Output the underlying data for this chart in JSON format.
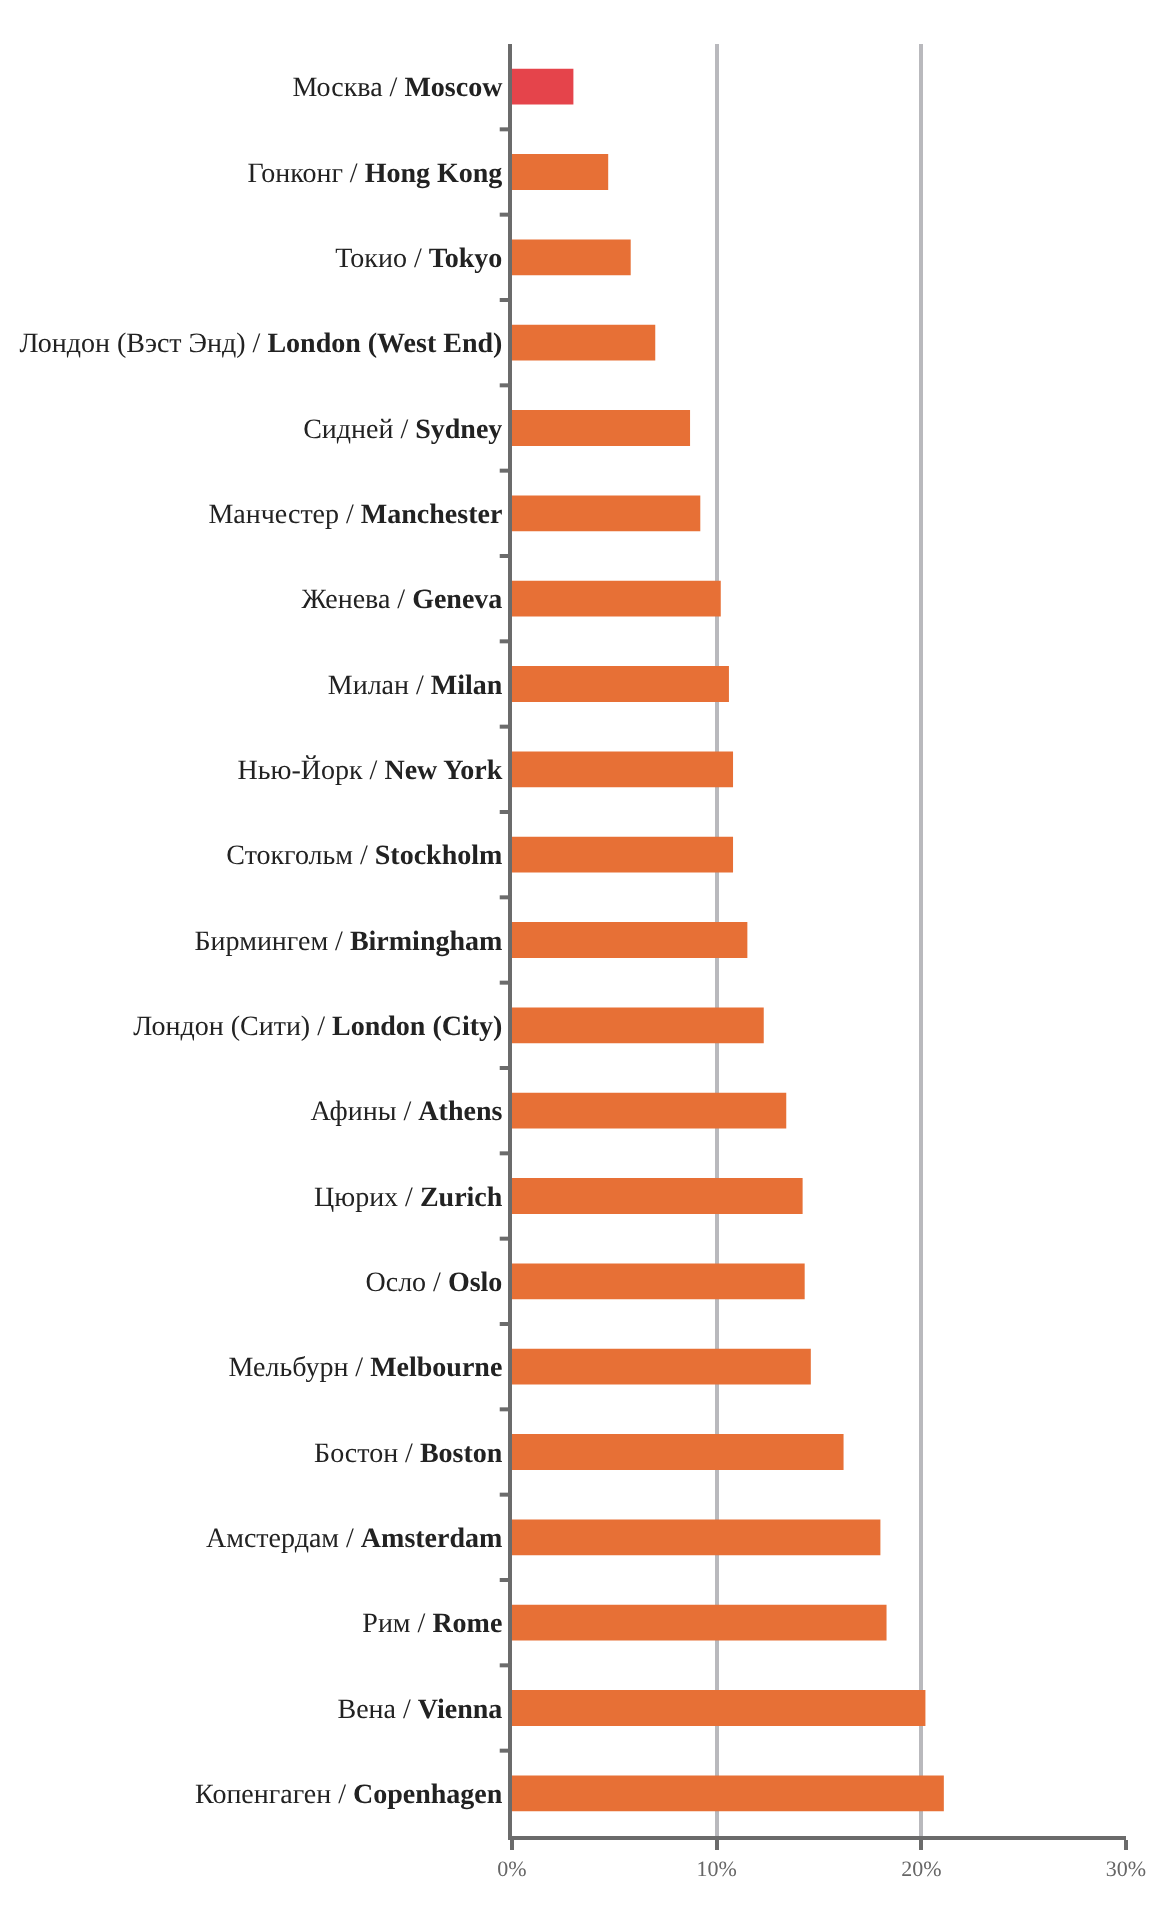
{
  "chart_data": {
    "type": "bar",
    "orientation": "horizontal",
    "categories": [
      "Москва / Moscow",
      "Гонконг / Hong Kong",
      "Токио / Tokyo",
      "Лондон (Вэст Энд) / London (West End)",
      "Сидней / Sydney",
      "Манчестер / Manchester",
      "Женева / Geneva",
      "Милан / Milan",
      "Нью-Йорк / New York",
      "Стокгольм / Stockholm",
      "Бирмингем / Birmingham",
      "Лондон (Сити) / London (City)",
      "Афины / Athens",
      "Цюрих / Zurich",
      "Осло / Oslo",
      "Мельбурн / Melbourne",
      "Бостон / Boston",
      "Амстердам / Amsterdam",
      "Рим / Rome",
      "Вена / Vienna",
      "Копенгаген / Copenhagen"
    ],
    "values": [
      3.0,
      4.7,
      5.8,
      7.0,
      8.7,
      9.2,
      10.2,
      10.6,
      10.8,
      10.8,
      11.5,
      12.3,
      13.4,
      14.2,
      14.3,
      14.6,
      16.2,
      18.0,
      18.3,
      20.2,
      21.1
    ],
    "colors": [
      "#e5444b",
      "#e77036",
      "#e77036",
      "#e77036",
      "#e77036",
      "#e77036",
      "#e77036",
      "#e77036",
      "#e77036",
      "#e77036",
      "#e77036",
      "#e77036",
      "#e77036",
      "#e77036",
      "#e77036",
      "#e77036",
      "#e77036",
      "#e77036",
      "#e77036",
      "#e77036",
      "#e77036"
    ],
    "xlim": [
      0,
      30
    ],
    "xticks": [
      {
        "value": 0,
        "label": "0%"
      },
      {
        "value": 10,
        "label": "10%"
      },
      {
        "value": 20,
        "label": "20%"
      },
      {
        "value": 30,
        "label": "30%"
      }
    ],
    "grid": "x",
    "legend": false
  }
}
